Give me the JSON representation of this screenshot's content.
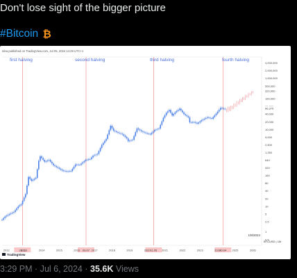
{
  "tweet": {
    "text": "Don't lose sight of the bigger picture",
    "hashtag": "#Bitcoin",
    "hashtag_emoji": "₿",
    "time": "3:29 PM",
    "sep": "·",
    "date": "Jul 6, 2024",
    "views_count": "35.6K",
    "views_label": "Views"
  },
  "colors": {
    "background": "#000000",
    "hashtag": "#1d9bf0",
    "bitcoin": "#f7931a",
    "candles": "#4a7fe8",
    "projection": "#e8747c",
    "halving_line": "#f08080",
    "halving_box": "#f8c6c6"
  },
  "chart": {
    "header": "Idea published on TradingView.com, Jul 05, 2024 14:29 UTC+1",
    "halving_labels": [
      "first halving",
      "second halving",
      "third halving",
      "fourth halving"
    ],
    "symbol": "BTCUSD | 1M",
    "last_date": "1/8/2024",
    "logo": "TradingView",
    "x_ticks": [
      "2012",
      "2013",
      "2014",
      "2015",
      "2016",
      "2017",
      "2018",
      "2019",
      "2020",
      "2021",
      "2022",
      "2023",
      "2024",
      "2025",
      "2026"
    ],
    "halving_dates": [
      "28.11",
      "09.07",
      "11.05",
      "20.04"
    ],
    "y_ticks": [
      "4,000,000",
      "2,000,000",
      "1,000,000",
      "500,000",
      "320,000",
      "160,000",
      "80,000",
      "66,375",
      "40,000",
      "20,000",
      "10,000",
      "5,000",
      "2,500",
      "1,250",
      "640",
      "320",
      "160",
      "80",
      "40",
      "20",
      "10",
      "5",
      "2.5",
      "1",
      "0.5"
    ]
  },
  "chart_data": {
    "type": "line",
    "title": "",
    "y_scale": "log",
    "ylabel": "",
    "xlabel": "",
    "series": [
      {
        "name": "",
        "x": [
          "2011-10",
          "2011-12",
          "2012-03",
          "2012-06",
          "2012-09",
          "2012-11",
          "2013-02",
          "2013-04",
          "2013-06",
          "2013-09",
          "2013-11",
          "2013-12",
          "2014-03",
          "2014-06",
          "2014-09",
          "2014-12",
          "2015-03",
          "2015-06",
          "2015-09",
          "2015-12",
          "2016-03",
          "2016-07",
          "2016-10",
          "2016-12",
          "2017-03",
          "2017-06",
          "2017-09",
          "2017-12",
          "2018-02",
          "2018-05",
          "2018-08",
          "2018-11",
          "2018-12",
          "2019-03",
          "2019-06",
          "2019-09",
          "2019-12",
          "2020-03",
          "2020-06",
          "2020-09",
          "2020-12",
          "2021-02",
          "2021-04",
          "2021-06",
          "2021-08",
          "2021-11",
          "2022-02",
          "2022-05",
          "2022-06",
          "2022-09",
          "2022-11",
          "2023-02",
          "2023-06",
          "2023-09",
          "2023-12",
          "2024-03",
          "2024-06"
        ],
        "y": [
          3,
          4,
          5,
          6,
          10,
          12,
          30,
          140,
          100,
          130,
          600,
          900,
          550,
          650,
          400,
          320,
          250,
          230,
          240,
          430,
          420,
          650,
          700,
          950,
          1100,
          2500,
          4300,
          14000,
          9000,
          7500,
          6500,
          4500,
          3500,
          4000,
          11000,
          8500,
          7200,
          6500,
          9500,
          11000,
          29000,
          45000,
          58000,
          35000,
          47000,
          65000,
          40000,
          30000,
          19000,
          19500,
          17000,
          23000,
          30000,
          26500,
          42000,
          70000,
          62000
        ]
      },
      {
        "name": "",
        "x": [
          "2024-07",
          "2024-10",
          "2025-01",
          "2025-04",
          "2025-07",
          "2025-10",
          "2026-01"
        ],
        "y": [
          60000,
          70000,
          95000,
          130000,
          170000,
          230000,
          300000
        ]
      }
    ],
    "halvings": [
      "2012-11-28",
      "2016-07-09",
      "2020-05-11",
      "2024-04-20"
    ]
  }
}
